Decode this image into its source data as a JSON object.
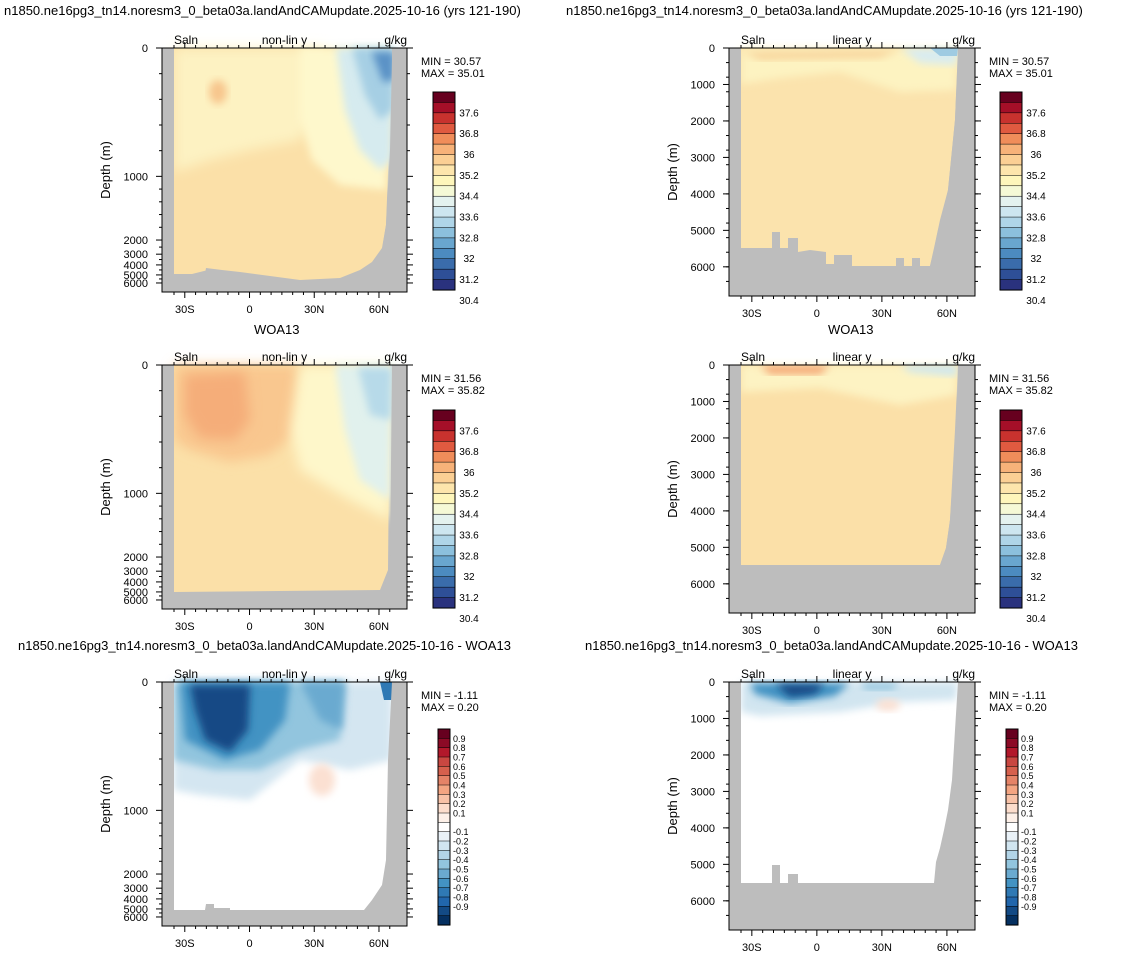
{
  "units_label": "g/kg",
  "field_label": "Saln",
  "rows": [
    {
      "title": "n1850.ne16pg3_tn14.noresm3_0_beta03a.landAndCAMupdate.2025-10-16 (yrs 121-190)",
      "stats": {
        "min_text": "MIN =  30.57",
        "max_text": "MAX =  35.01"
      },
      "colorbar": "abs"
    },
    {
      "title": "WOA13",
      "stats": {
        "min_text": "MIN =  31.56",
        "max_text": "MAX =  35.82"
      },
      "colorbar": "abs"
    },
    {
      "title": "n1850.ne16pg3_tn14.noresm3_0_beta03a.landAndCAMupdate.2025-10-16 - WOA13",
      "stats": {
        "min_text": "MIN =  -1.11",
        "max_text": "MAX =   0.20"
      },
      "colorbar": "diff"
    }
  ],
  "colorbars": {
    "abs": {
      "labels": [
        "37.6",
        "36.8",
        "36",
        "35.2",
        "34.4",
        "33.6",
        "32.8",
        "32",
        "31.2",
        "30.4"
      ],
      "colors": [
        "#67001f",
        "#a50f28",
        "#c8322e",
        "#e05a40",
        "#f08d5a",
        "#f7b279",
        "#fbcf94",
        "#fde5ac",
        "#fef6bb",
        "#f5f9d6",
        "#e4f2ef",
        "#cde6f0",
        "#afd5e8",
        "#8cc0dd",
        "#69a6cf",
        "#4c8bc0",
        "#3a6cab",
        "#2e4f97",
        "#2a327e"
      ]
    },
    "diff": {
      "labels": [
        "0.9",
        "0.8",
        "0.7",
        "0.6",
        "0.5",
        "0.4",
        "0.3",
        "0.2",
        "0.1",
        "-0.1",
        "-0.2",
        "-0.3",
        "-0.4",
        "-0.5",
        "-0.6",
        "-0.7",
        "-0.8",
        "-0.9"
      ],
      "colors": [
        "#67001f",
        "#8c0a26",
        "#b2182b",
        "#c94741",
        "#d6604d",
        "#e58367",
        "#f4a582",
        "#f8c2a7",
        "#fcddcc",
        "#fdf0e8",
        "#ffffff",
        "#e9f1f7",
        "#d1e5f0",
        "#b2d4e7",
        "#92c5de",
        "#6aaad0",
        "#4393c3",
        "#2f79b4",
        "#2166ac",
        "#134a85",
        "#053061"
      ]
    }
  },
  "panels": {
    "nonlinear": {
      "mode_label": "non-lin y",
      "ylabel": "Depth (m)",
      "y_ticks": [
        "0",
        "1000",
        "2000",
        "3000",
        "4000",
        "5000",
        "6000"
      ]
    },
    "linear": {
      "mode_label": "linear y",
      "ylabel": "Depth (m)",
      "y_ticks": [
        "0",
        "1000",
        "2000",
        "3000",
        "4000",
        "5000",
        "6000"
      ]
    }
  },
  "x_ticks": [
    "30S",
    "0",
    "30N",
    "60N"
  ],
  "chart_data": [
    {
      "type": "heatmap",
      "title": "n1850.ne16pg3_tn14.noresm3_0_beta03a.landAndCAMupdate.2025-10-16 (yrs 121-190)",
      "ylabel": "Depth (m)",
      "y_scale": "non-linear",
      "x_ticks": [
        "30S",
        "0",
        "30N",
        "60N"
      ],
      "x_range": [
        -40,
        70
      ],
      "y_range": [
        0,
        6500
      ],
      "units": "g/kg",
      "min": 30.57,
      "max": 35.01
    },
    {
      "type": "heatmap",
      "title": "n1850.ne16pg3_tn14.noresm3_0_beta03a.landAndCAMupdate.2025-10-16 (yrs 121-190)",
      "ylabel": "Depth (m)",
      "y_scale": "linear",
      "x_ticks": [
        "30S",
        "0",
        "30N",
        "60N"
      ],
      "x_range": [
        -40,
        70
      ],
      "y_range": [
        0,
        6800
      ],
      "units": "g/kg",
      "min": 30.57,
      "max": 35.01
    },
    {
      "type": "heatmap",
      "title": "WOA13",
      "ylabel": "Depth (m)",
      "y_scale": "non-linear",
      "x_ticks": [
        "30S",
        "0",
        "30N",
        "60N"
      ],
      "x_range": [
        -40,
        70
      ],
      "y_range": [
        0,
        6500
      ],
      "units": "g/kg",
      "min": 31.56,
      "max": 35.82
    },
    {
      "type": "heatmap",
      "title": "WOA13",
      "ylabel": "Depth (m)",
      "y_scale": "linear",
      "x_ticks": [
        "30S",
        "0",
        "30N",
        "60N"
      ],
      "x_range": [
        -40,
        70
      ],
      "y_range": [
        0,
        6800
      ],
      "units": "g/kg",
      "min": 31.56,
      "max": 35.82
    },
    {
      "type": "heatmap",
      "title": "n1850.ne16pg3_tn14.noresm3_0_beta03a.landAndCAMupdate.2025-10-16 - WOA13",
      "ylabel": "Depth (m)",
      "y_scale": "non-linear",
      "x_ticks": [
        "30S",
        "0",
        "30N",
        "60N"
      ],
      "x_range": [
        -40,
        70
      ],
      "y_range": [
        0,
        6500
      ],
      "units": "g/kg",
      "min": -1.11,
      "max": 0.2
    },
    {
      "type": "heatmap",
      "title": "n1850.ne16pg3_tn14.noresm3_0_beta03a.landAndCAMupdate.2025-10-16 - WOA13",
      "ylabel": "Depth (m)",
      "y_scale": "linear",
      "x_ticks": [
        "30S",
        "0",
        "30N",
        "60N"
      ],
      "x_range": [
        -40,
        70
      ],
      "y_range": [
        0,
        6800
      ],
      "units": "g/kg",
      "min": -1.11,
      "max": 0.2
    }
  ]
}
